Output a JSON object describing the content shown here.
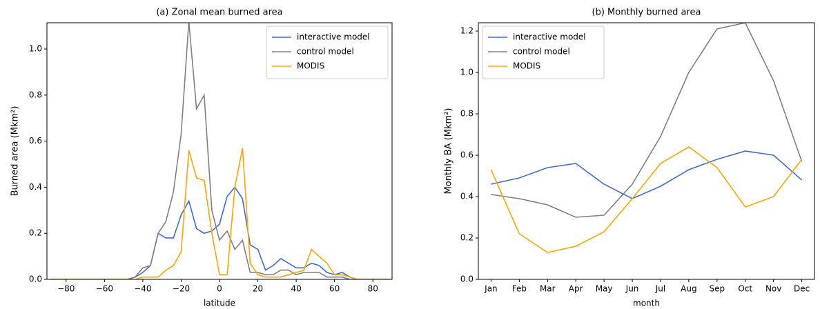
{
  "chart_data": [
    {
      "type": "line",
      "title": "(a) Zonal mean burned area",
      "xlabel": "latitude",
      "ylabel": "Burned area (Mkm²)",
      "x": [
        -88,
        -84,
        -80,
        -76,
        -72,
        -68,
        -64,
        -60,
        -56,
        -52,
        -48,
        -44,
        -40,
        -36,
        -32,
        -28,
        -24,
        -20,
        -16,
        -12,
        -8,
        -4,
        0,
        4,
        8,
        12,
        16,
        20,
        24,
        28,
        32,
        36,
        40,
        44,
        48,
        52,
        56,
        60,
        64,
        68,
        72,
        76,
        80,
        84,
        88
      ],
      "xlim": [
        -90,
        90
      ],
      "xticks": [
        {
          "value": -80,
          "label": "−80"
        },
        {
          "value": -60,
          "label": "−60"
        },
        {
          "value": -40,
          "label": "−40"
        },
        {
          "value": -20,
          "label": "−20"
        },
        0,
        20,
        40,
        60,
        80
      ],
      "ylim": [
        0,
        1.114
      ],
      "yticks": [
        {
          "value": 0,
          "label": "0.0"
        },
        0.2,
        0.4,
        0.6,
        0.8,
        {
          "value": 1,
          "label": "1.0"
        }
      ],
      "legend": "upper right",
      "series": [
        {
          "name": "interactive model",
          "color": "#4169e1",
          "values": [
            0,
            0,
            0,
            0,
            0,
            0,
            0,
            0,
            0,
            0,
            0,
            0.01,
            0.03,
            0.06,
            0.2,
            0.18,
            0.18,
            0.28,
            0.34,
            0.22,
            0.2,
            0.21,
            0.24,
            0.36,
            0.4,
            0.35,
            0.15,
            0.13,
            0.04,
            0.06,
            0.09,
            0.07,
            0.05,
            0.05,
            0.07,
            0.06,
            0.03,
            0.02,
            0.03,
            0.01,
            0,
            0,
            0,
            0,
            0
          ]
        },
        {
          "name": "control model",
          "color": "#808080",
          "values": [
            0,
            0,
            0,
            0,
            0,
            0,
            0,
            0,
            0,
            0,
            0,
            0.01,
            0.05,
            0.06,
            0.2,
            0.25,
            0.38,
            0.63,
            1.12,
            0.74,
            0.8,
            0.3,
            0.17,
            0.21,
            0.13,
            0.17,
            0.03,
            0.03,
            0.02,
            0.02,
            0.04,
            0.04,
            0.02,
            0.03,
            0.03,
            0.03,
            0.01,
            0.01,
            0.01,
            0,
            0,
            0,
            0,
            0,
            0
          ]
        },
        {
          "name": "MODIS",
          "color": "#ffa500",
          "values": [
            0,
            0,
            0,
            0,
            0,
            0,
            0,
            0,
            0,
            0,
            0,
            0,
            0.01,
            0.01,
            0.01,
            0.04,
            0.06,
            0.12,
            0.56,
            0.44,
            0.43,
            0.2,
            0.02,
            0.02,
            0.4,
            0.57,
            0.07,
            0.02,
            0.01,
            0.01,
            0.01,
            0.02,
            0.03,
            0.04,
            0.13,
            0.1,
            0.07,
            0.02,
            0.02,
            0.01,
            0,
            0,
            0,
            0,
            0
          ]
        }
      ]
    },
    {
      "type": "line",
      "title": "(b) Monthly burned area",
      "xlabel": "month",
      "ylabel": "Monthly BA (Mkm²)",
      "categories": [
        "Jan",
        "Feb",
        "Mar",
        "Apr",
        "May",
        "Jun",
        "Jul",
        "Aug",
        "Sep",
        "Oct",
        "Nov",
        "Dec"
      ],
      "ylim": [
        0,
        1.24
      ],
      "yticks": [
        {
          "value": 0,
          "label": "0.0"
        },
        0.2,
        0.4,
        0.6,
        0.8,
        {
          "value": 1,
          "label": "1.0"
        },
        1.2
      ],
      "legend": "upper left",
      "series": [
        {
          "name": "interactive model",
          "color": "#4169e1",
          "values": [
            0.46,
            0.49,
            0.54,
            0.56,
            0.46,
            0.39,
            0.45,
            0.53,
            0.58,
            0.62,
            0.6,
            0.48
          ]
        },
        {
          "name": "control model",
          "color": "#808080",
          "values": [
            0.41,
            0.39,
            0.36,
            0.3,
            0.31,
            0.46,
            0.69,
            1.0,
            1.21,
            1.24,
            0.96,
            0.57
          ]
        },
        {
          "name": "MODIS",
          "color": "#ffa500",
          "values": [
            0.53,
            0.22,
            0.13,
            0.16,
            0.23,
            0.39,
            0.56,
            0.64,
            0.54,
            0.35,
            0.4,
            0.58
          ]
        }
      ]
    }
  ]
}
